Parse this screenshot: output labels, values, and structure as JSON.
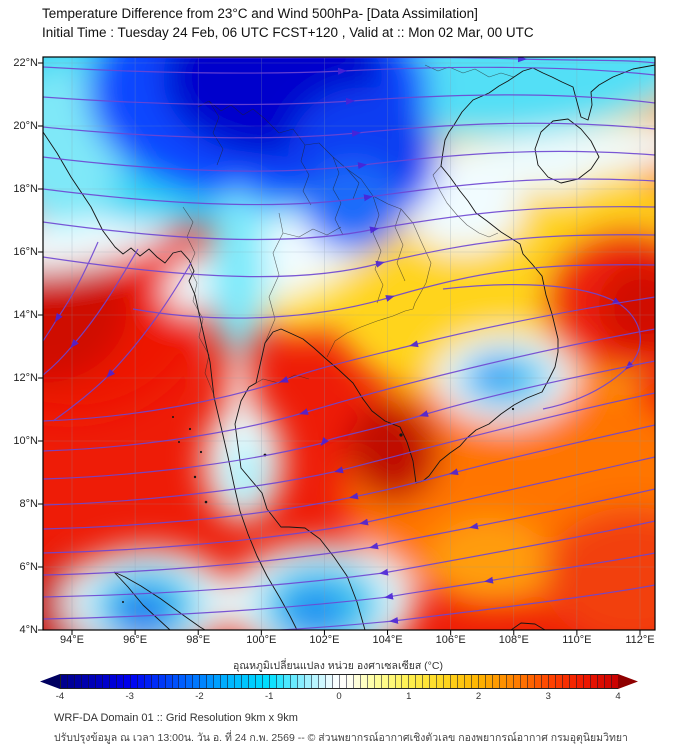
{
  "title": {
    "line1": "Temperature Difference from 23°C and Wind 500hPa- [Data Assimilation]",
    "line2": "Initial Time : Tuesday 24 Feb, 06 UTC FCST+120 , Valid at ::  Mon 02 Mar, 00 UTC"
  },
  "map": {
    "x_ticks": [
      "94°E",
      "96°E",
      "98°E",
      "100°E",
      "102°E",
      "104°E",
      "106°E",
      "108°E",
      "110°E",
      "112°E"
    ],
    "y_ticks": [
      "22°N",
      "20°N",
      "18°N",
      "16°N",
      "14°N",
      "12°N",
      "10°N",
      "8°N",
      "6°N",
      "4°N"
    ]
  },
  "colorbar": {
    "label": "อุณหภูมิเปลี่ยนแปลง หน่วย องศาเซลเซียส (°C)",
    "ticks": [
      "-4",
      "-3",
      "-2",
      "-1",
      "0",
      "1",
      "2",
      "3",
      "4"
    ],
    "min": -4,
    "max": 4,
    "under_color": "#000060",
    "over_color": "#8f0000",
    "stops": [
      {
        "v": -4.0,
        "c": "#000089"
      },
      {
        "v": -3.0,
        "c": "#0000f0"
      },
      {
        "v": -2.2,
        "c": "#0064ff"
      },
      {
        "v": -1.6,
        "c": "#00b4ff"
      },
      {
        "v": -1.0,
        "c": "#00e0ff"
      },
      {
        "v": -0.5,
        "c": "#96f0ff"
      },
      {
        "v": -0.15,
        "c": "#e6fbff"
      },
      {
        "v": 0.0,
        "c": "#ffffff"
      },
      {
        "v": 0.15,
        "c": "#fffff0"
      },
      {
        "v": 0.5,
        "c": "#ffffa0"
      },
      {
        "v": 1.0,
        "c": "#fff050"
      },
      {
        "v": 1.5,
        "c": "#ffd820"
      },
      {
        "v": 2.0,
        "c": "#ffb400"
      },
      {
        "v": 2.5,
        "c": "#ff8200"
      },
      {
        "v": 3.0,
        "c": "#ff4600"
      },
      {
        "v": 3.5,
        "c": "#f01800"
      },
      {
        "v": 4.0,
        "c": "#c80000"
      }
    ]
  },
  "footer": {
    "line1": "WRF-DA Domain 01 :: Grid Resolution 9km x 9km",
    "line2": "ปรับปรุงข้อมูล ณ เวลา 13:00น. วัน อ. ที่ 24 ก.พ. 2569 -- © ส่วนพยากรณ์อากาศเชิงตัวเลข กองพยากรณ์อากาศ กรมอุตุนิยมวิทยา"
  },
  "chart_data": {
    "type": "heatmap",
    "title": "Temperature Difference from 23°C and Wind 500hPa- [Data Assimilation]",
    "subtitle": "Initial Time : Tuesday 24 Feb, 06 UTC FCST+120 , Valid at :: Mon 02 Mar, 00 UTC",
    "xlabel": "Longitude (°E)",
    "ylabel": "Latitude (°N)",
    "xlim": [
      93.1,
      112.5
    ],
    "ylim": [
      4,
      22.2
    ],
    "grid": true,
    "colorbar_label": "อุณหภูมิเปลี่ยนแปลง หน่วย องศาเซลเซียส (°C)",
    "colorbar_range": [
      -4,
      4
    ],
    "lon": [
      94,
      96,
      98,
      100,
      102,
      104,
      106,
      108,
      110,
      112
    ],
    "lat": [
      22,
      20,
      18,
      16,
      14,
      12,
      10,
      8,
      6,
      4
    ],
    "temp_anomaly_estimate_C": [
      [
        -1.2,
        -2.2,
        -3.6,
        -3.8,
        -3.6,
        -3.0,
        -1.5,
        0.8,
        1.5,
        2.2
      ],
      [
        -1.0,
        -1.8,
        -3.0,
        -3.6,
        -3.4,
        -2.6,
        -1.2,
        0.5,
        1.2,
        1.5
      ],
      [
        0.5,
        1.2,
        0.3,
        -2.2,
        -2.8,
        -1.6,
        0.8,
        1.2,
        0.2,
        1.8
      ],
      [
        2.5,
        1.8,
        0.5,
        -1.2,
        0.8,
        1.5,
        1.2,
        1.5,
        2.0,
        2.5
      ],
      [
        3.5,
        3.2,
        1.5,
        0.3,
        1.5,
        1.8,
        1.5,
        1.8,
        2.8,
        3.2
      ],
      [
        3.5,
        3.5,
        2.5,
        0.8,
        1.8,
        2.2,
        1.0,
        -0.8,
        2.2,
        3.0
      ],
      [
        3.3,
        3.5,
        2.8,
        0.5,
        2.5,
        3.2,
        2.5,
        2.2,
        2.5,
        2.8
      ],
      [
        3.2,
        3.4,
        3.0,
        1.5,
        2.8,
        3.5,
        2.8,
        2.5,
        2.6,
        2.8
      ],
      [
        3.0,
        2.8,
        3.2,
        2.8,
        2.0,
        3.0,
        2.8,
        2.6,
        2.8,
        3.0
      ],
      [
        2.8,
        -1.5,
        2.5,
        0.5,
        -1.8,
        2.8,
        3.0,
        2.5,
        2.8,
        3.0
      ]
    ],
    "wind": {
      "level": "500hPa",
      "style": "streamlines with arrowheads",
      "pattern_north_of_17N": "westerly flow, arrows pointing east",
      "pattern_south_of_10N": "easterly flow, arrows pointing west",
      "pattern_central_band": "northeast-to-southwest diagonal flow curving anticyclonically from the east edge"
    }
  }
}
